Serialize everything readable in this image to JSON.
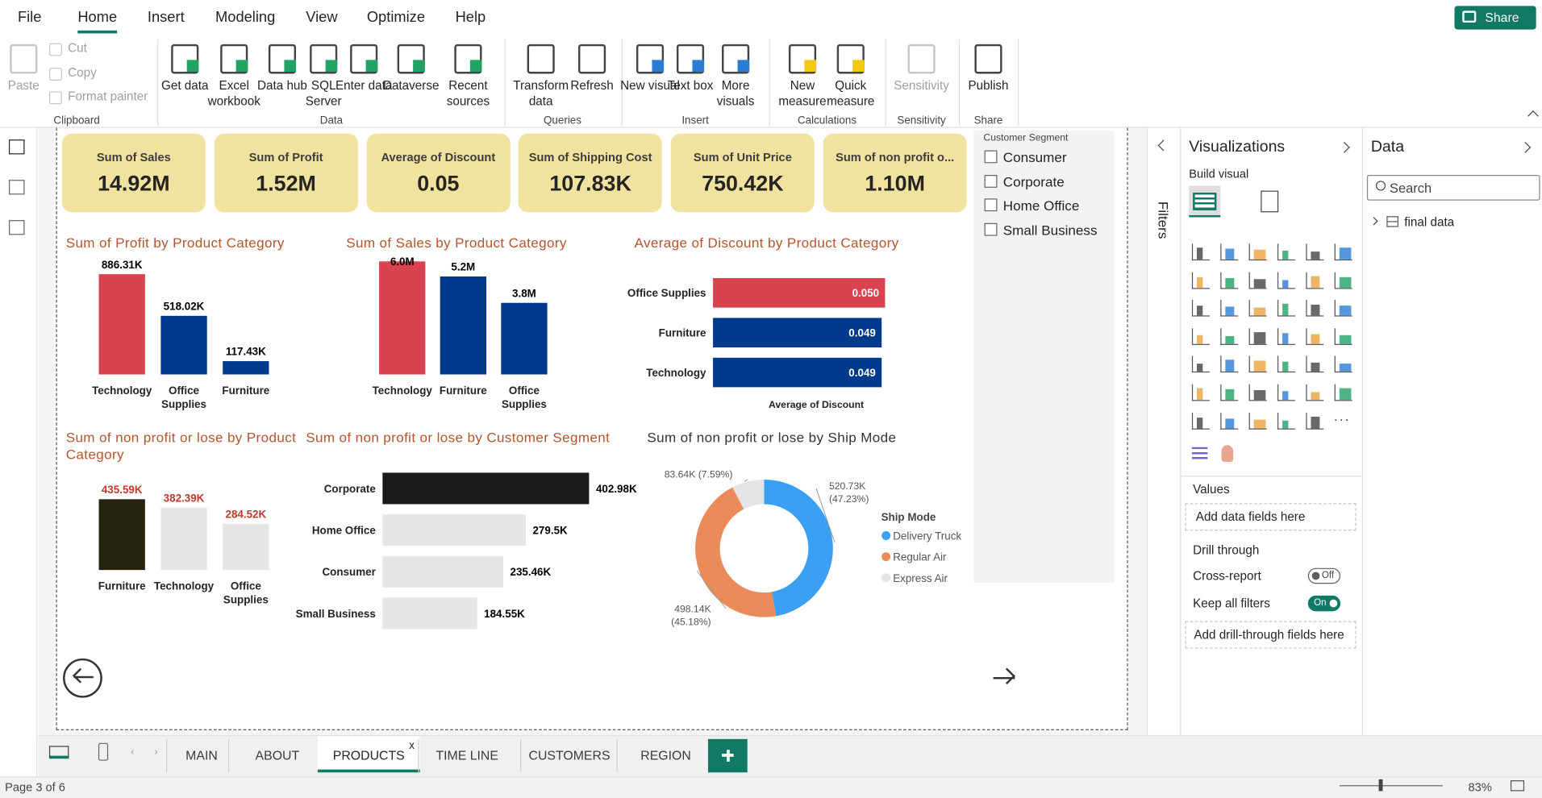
{
  "menu": {
    "items": [
      "File",
      "Home",
      "Insert",
      "Modeling",
      "View",
      "Optimize",
      "Help"
    ],
    "active": 1,
    "share": "Share"
  },
  "ribbon": {
    "groups": [
      {
        "name": "Clipboard",
        "items": [
          "Paste",
          "Cut",
          "Copy",
          "Format painter"
        ]
      },
      {
        "name": "Data",
        "items": [
          "Get data",
          "Excel workbook",
          "Data hub",
          "SQL Server",
          "Enter data",
          "Dataverse",
          "Recent sources"
        ]
      },
      {
        "name": "Queries",
        "items": [
          "Transform data",
          "Refresh"
        ]
      },
      {
        "name": "Insert",
        "items": [
          "New visual",
          "Text box",
          "More visuals"
        ]
      },
      {
        "name": "Calculations",
        "items": [
          "New measure",
          "Quick measure"
        ]
      },
      {
        "name": "Sensitivity",
        "items": [
          "Sensitivity"
        ]
      },
      {
        "name": "Share",
        "items": [
          "Publish"
        ]
      }
    ]
  },
  "cards": [
    {
      "label": "Sum of Sales",
      "value": "14.92M"
    },
    {
      "label": "Sum of Profit",
      "value": "1.52M"
    },
    {
      "label": "Average of Discount",
      "value": "0.05"
    },
    {
      "label": "Sum of Shipping Cost",
      "value": "107.83K"
    },
    {
      "label": "Sum of Unit Price",
      "value": "750.42K"
    },
    {
      "label": "Sum of non profit o...",
      "value": "1.10M"
    }
  ],
  "slicer": {
    "title": "Customer Segment",
    "items": [
      "Consumer",
      "Corporate",
      "Home Office",
      "Small Business"
    ]
  },
  "charts": [
    {
      "type": "bar",
      "title": "Sum of Profit by Product Category",
      "title_color": "#b3552e",
      "label_color": "#000000",
      "categories": [
        "Technology",
        "Office Supplies",
        "Furniture"
      ],
      "values": [
        886.31,
        518.02,
        117.43
      ],
      "value_labels": [
        "886.31K",
        "518.02K",
        "117.43K"
      ],
      "colors": [
        "#d9434f",
        "#003a8c",
        "#003a8c"
      ]
    },
    {
      "type": "bar",
      "title": "Sum of Sales by Product Category",
      "title_color": "#b3552e",
      "label_color": "#000000",
      "categories": [
        "Technology",
        "Furniture",
        "Office Supplies"
      ],
      "values": [
        6.0,
        5.2,
        3.8
      ],
      "value_labels": [
        "6.0M",
        "5.2M",
        "3.8M"
      ],
      "colors": [
        "#d9434f",
        "#003a8c",
        "#003a8c"
      ]
    },
    {
      "type": "barh",
      "title": "Average of Discount by Product Category",
      "title_color": "#b3552e",
      "label_color": "#ffffff",
      "axis_label": "Average of Discount",
      "categories": [
        "Office Supplies",
        "Furniture",
        "Technology"
      ],
      "values": [
        0.05,
        0.049,
        0.049
      ],
      "value_labels": [
        "0.050",
        "0.049",
        "0.049"
      ],
      "colors": [
        "#d9434f",
        "#003a8c",
        "#003a8c"
      ]
    },
    {
      "type": "bar",
      "title": "Sum of non profit or lose by Product Category",
      "title_color": "#b3552e",
      "label_color": "#c0392b",
      "categories": [
        "Furniture",
        "Technology",
        "Office Supplies"
      ],
      "values": [
        435.59,
        382.39,
        284.52
      ],
      "value_labels": [
        "435.59K",
        "382.39K",
        "284.52K"
      ],
      "colors": [
        "#25230f",
        "#e6e6e6",
        "#e6e6e6"
      ]
    },
    {
      "type": "barh",
      "title": "Sum of non profit or lose by Customer Segment",
      "title_color": "#b3552e",
      "label_color": "#000000",
      "categories": [
        "Corporate",
        "Home Office",
        "Consumer",
        "Small Business"
      ],
      "values": [
        402.98,
        279.5,
        235.46,
        184.55
      ],
      "value_labels": [
        "402.98K",
        "279.5K",
        "235.46K",
        "184.55K"
      ],
      "colors": [
        "#1a1a1a",
        "#e6e6e6",
        "#e6e6e6",
        "#e6e6e6"
      ]
    },
    {
      "type": "pie",
      "title": "Sum of non profit or lose by Ship Mode",
      "title_color": "#333333",
      "legend_title": "Ship Mode",
      "categories": [
        "Delivery Truck",
        "Regular Air",
        "Express Air"
      ],
      "values": [
        520.73,
        498.14,
        83.64
      ],
      "value_labels": [
        "520.73K",
        "498.14K",
        "83.64K"
      ],
      "percent_labels": [
        "(47.23%)",
        "(45.18%)",
        "(7.59%)"
      ],
      "colors": [
        "#3a9ff5",
        "#ec8b5a",
        "#e4e4e4"
      ]
    }
  ],
  "tabs": {
    "pages": [
      "MAIN",
      "ABOUT",
      "PRODUCTS",
      "TIME LINE",
      "CUSTOMERS",
      "REGION"
    ],
    "active": 2,
    "close": "x"
  },
  "status": {
    "page": "Page 3 of 6",
    "zoom": "83%"
  },
  "filters": "Filters",
  "visualizations": {
    "title": "Visualizations",
    "build": "Build visual",
    "values": "Values",
    "values_hint": "Add data fields here",
    "drill": "Drill through",
    "cross": "Cross-report",
    "cross_state": "Off",
    "keep": "Keep all filters",
    "keep_state": "On",
    "drill_hint": "Add drill-through fields here"
  },
  "data_pane": {
    "title": "Data",
    "search": "Search",
    "table": "final data"
  }
}
